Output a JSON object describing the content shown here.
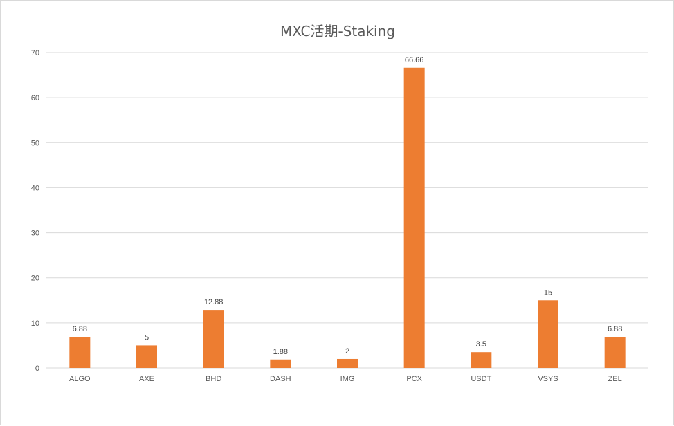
{
  "chart_data": {
    "type": "bar",
    "title": "MXC活期-Staking",
    "xlabel": "",
    "ylabel": "",
    "categories": [
      "ALGO",
      "AXE",
      "BHD",
      "DASH",
      "IMG",
      "PCX",
      "USDT",
      "VSYS",
      "ZEL"
    ],
    "values": [
      6.88,
      5,
      12.88,
      1.88,
      2,
      66.66,
      3.5,
      15,
      6.88
    ],
    "data_labels": [
      "6.88",
      "5",
      "12.88",
      "1.88",
      "2",
      "66.66",
      "3.5",
      "15",
      "6.88"
    ],
    "ylim": [
      0,
      70
    ],
    "yticks": [
      0,
      10,
      20,
      30,
      40,
      50,
      60,
      70
    ],
    "grid": true,
    "legend": false,
    "bar_color": "#ED7D31",
    "grid_color": "#D9D9D9"
  }
}
